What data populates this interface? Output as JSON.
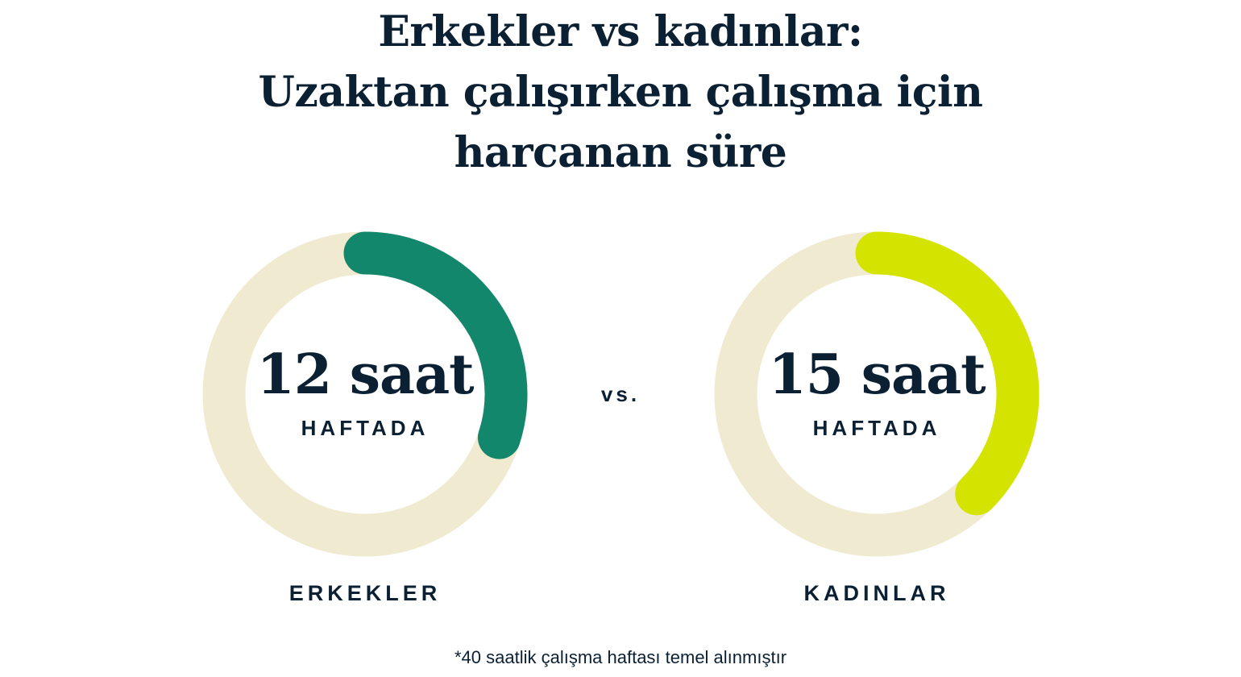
{
  "title_lines": [
    "Erkekler vs kadınlar:",
    "Uzaktan çalışırken çalışma için",
    "harcanan süre"
  ],
  "vs_label": "vs.",
  "footnote": "*40 saatlik çalışma haftası temel alınmıştır",
  "chart_data": {
    "type": "donut",
    "total": 40,
    "unit_label": "HAFTADA",
    "track_color": "#f0ead0",
    "series": [
      {
        "name": "ERKEKLER",
        "value": 12,
        "label": "12 saat",
        "color": "#12876b"
      },
      {
        "name": "KADINLAR",
        "value": 15,
        "label": "15 saat",
        "color": "#d4e300"
      }
    ]
  }
}
